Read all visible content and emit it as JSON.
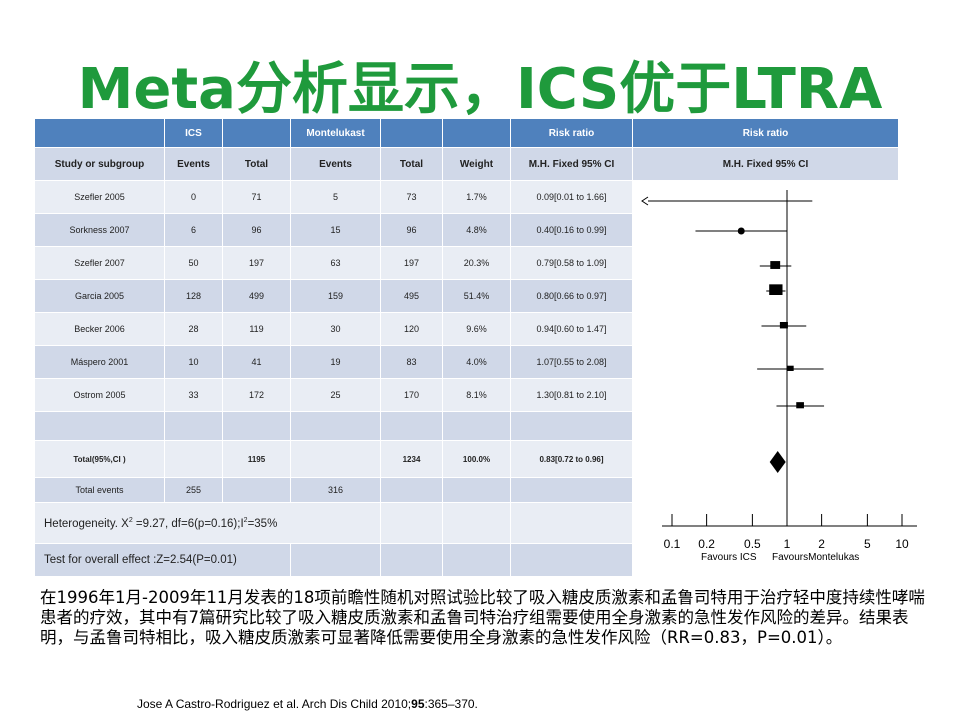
{
  "slide": {
    "title": "Meta分析显示，ICS优于LTRA",
    "description": "在1996年1月-2009年11月发表的18项前瞻性随机对照试验比较了吸入糖皮质激素和孟鲁司特用于治疗轻中度持续性哮喘患者的疗效，其中有7篇研究比较了吸入糖皮质激素和孟鲁司特治疗组需要使用全身激素的急性发作风险的差异。结果表明，与孟鲁司特相比，吸入糖皮质激素可显著降低需要使用全身激素的急性发作风险（RR=0.83，P=0.01）。",
    "citation_pre": "Jose A Castro-Rodriguez et al. Arch Dis Child 2010;",
    "citation_vol": "95",
    "citation_post": ":365–370."
  },
  "table": {
    "header1": [
      "",
      "ICS",
      "",
      "Montelukast",
      "",
      "",
      "Risk ratio",
      "Risk ratio"
    ],
    "header2": [
      "Study or subgroup",
      "Events",
      "Total",
      "Events",
      "Total",
      "Weight",
      "M.H. Fixed 95% CI",
      "M.H. Fixed 95% CI"
    ],
    "rows": [
      [
        "Szefler 2005",
        "0",
        "71",
        "5",
        "73",
        "1.7%",
        "0.09[0.01 to 1.66]"
      ],
      [
        "Sorkness 2007",
        "6",
        "96",
        "15",
        "96",
        "4.8%",
        "0.40[0.16 to 0.99]"
      ],
      [
        "Szefler 2007",
        "50",
        "197",
        "63",
        "197",
        "20.3%",
        "0.79[0.58 to 1.09]"
      ],
      [
        "Garcia 2005",
        "128",
        "499",
        "159",
        "495",
        "51.4%",
        "0.80[0.66 to 0.97]"
      ],
      [
        "Becker 2006",
        "28",
        "119",
        "30",
        "120",
        "9.6%",
        "0.94[0.60 to 1.47]"
      ],
      [
        "Máspero 2001",
        "10",
        "41",
        "19",
        "83",
        "4.0%",
        "1.07[0.55 to 2.08]"
      ],
      [
        "Ostrom 2005",
        "33",
        "172",
        "25",
        "170",
        "8.1%",
        "1.30[0.81 to 2.10]"
      ]
    ],
    "total_row": [
      "Total(95%,CI )",
      "",
      "1195",
      "",
      "1234",
      "100.0%",
      "0.83[0.72 to 0.96]"
    ],
    "total_events_row": [
      "Total events",
      "255",
      "",
      "316",
      "",
      "",
      ""
    ],
    "heterogeneity_pre": "Heterogeneity. X",
    "heterogeneity_sup": "2",
    "heterogeneity_mid": " =9.27, df=6(p=0.16);I",
    "heterogeneity_sup2": "2",
    "heterogeneity_post": "=35%",
    "overall_effect": "Test for overall effect :Z=2.54(P=0.01)"
  },
  "chart_data": {
    "type": "scatter",
    "xscale": "log",
    "xlim": [
      0.08,
      13
    ],
    "ticks": [
      0.1,
      0.2,
      0.5,
      1,
      2,
      5,
      10
    ],
    "tick_labels": [
      "0.1",
      "0.2",
      "0.5",
      "1",
      "2",
      "5",
      "10"
    ],
    "favours_left": "Favours ICS",
    "favours_right": "FavoursMontelukas",
    "studies": [
      {
        "rr": 0.09,
        "lo": 0.01,
        "hi": 1.66,
        "weight": 1.7
      },
      {
        "rr": 0.4,
        "lo": 0.16,
        "hi": 0.99,
        "weight": 4.8
      },
      {
        "rr": 0.79,
        "lo": 0.58,
        "hi": 1.09,
        "weight": 20.3
      },
      {
        "rr": 0.8,
        "lo": 0.66,
        "hi": 0.97,
        "weight": 51.4
      },
      {
        "rr": 0.94,
        "lo": 0.6,
        "hi": 1.47,
        "weight": 9.6
      },
      {
        "rr": 1.07,
        "lo": 0.55,
        "hi": 2.08,
        "weight": 4.0
      },
      {
        "rr": 1.3,
        "lo": 0.81,
        "hi": 2.1,
        "weight": 8.1
      }
    ],
    "pooled": {
      "rr": 0.83,
      "lo": 0.72,
      "hi": 0.96
    }
  }
}
